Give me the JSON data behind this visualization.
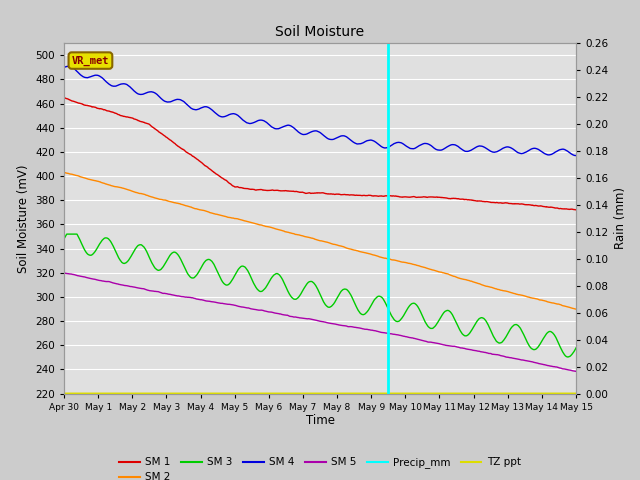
{
  "title": "Soil Moisture",
  "xlabel": "Time",
  "ylabel_left": "Soil Moisture (mV)",
  "ylabel_right": "Rain (mm)",
  "ylim_left": [
    220,
    510
  ],
  "ylim_right": [
    0.0,
    0.26
  ],
  "yticks_left": [
    220,
    240,
    260,
    280,
    300,
    320,
    340,
    360,
    380,
    400,
    420,
    440,
    460,
    480,
    500
  ],
  "yticks_right": [
    0.0,
    0.02,
    0.04,
    0.06,
    0.08,
    0.1,
    0.12,
    0.14,
    0.16,
    0.18,
    0.2,
    0.22,
    0.24,
    0.26
  ],
  "xtick_labels": [
    "Apr 30",
    "May 1",
    "May 2",
    "May 3",
    "May 4",
    "May 5",
    "May 6",
    "May 7",
    "May 8",
    "May 9",
    "May 10",
    "May 11",
    "May 12",
    "May 13",
    "May 14",
    "May 15"
  ],
  "vline_day": 9.5,
  "vline_color": "cyan",
  "background_color": "#cccccc",
  "plot_bg_color": "#e0e0e0",
  "grid_color": "white",
  "colors": {
    "SM1": "#dd0000",
    "SM2": "#ff8800",
    "SM3": "#00cc00",
    "SM4": "#0000dd",
    "SM5": "#aa00aa",
    "Precip": "cyan",
    "TZ": "#dddd00"
  },
  "legend_box_facecolor": "#e8e000",
  "legend_box_edgecolor": "#886600",
  "legend_box_text": "VR_met",
  "legend_box_textcolor": "#880000"
}
